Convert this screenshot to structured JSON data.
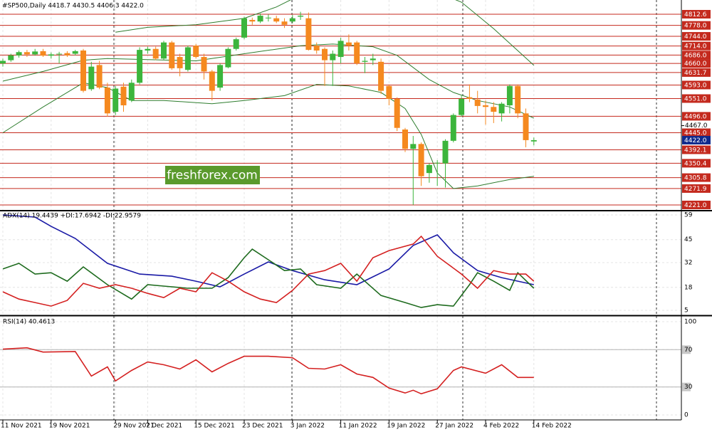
{
  "chart_data": [
    {
      "type": "candlestick",
      "title": "#SP500,Daily  4418.7 4430.5 4406.3 4422.0",
      "categories": [
        "11 Nov 2021",
        null,
        null,
        null,
        null,
        null,
        "19 Nov 2021",
        null,
        null,
        null,
        null,
        null,
        null,
        null,
        "29 Nov 2021",
        null,
        null,
        null,
        "7 Dec 2021",
        null,
        null,
        null,
        null,
        null,
        "15 Dec 2021",
        null,
        null,
        null,
        null,
        null,
        "23 Dec 2021",
        null,
        null,
        null,
        null,
        null,
        "3 Jan 2022",
        null,
        null,
        null,
        null,
        null,
        "11 Jan 2022",
        null,
        null,
        null,
        null,
        null,
        "19 Jan 2022",
        null,
        null,
        null,
        null,
        null,
        "27 Jan 2022",
        null,
        null,
        null,
        null,
        null,
        "4 Feb 2022",
        null,
        null,
        null,
        null,
        null,
        "14 Feb 2022"
      ],
      "open": [
        4660,
        4670,
        4685,
        4695,
        4688,
        4698,
        4684,
        4688,
        4692,
        4690,
        4700,
        4580,
        4655,
        4585,
        4510,
        4588,
        4545,
        4600,
        4700,
        4705,
        4675,
        4725,
        4680,
        4640,
        4715,
        4680,
        4635,
        4585,
        4648,
        4705,
        4740,
        4795,
        4790,
        4800,
        4800,
        4790,
        4790,
        4805,
        4800,
        4715,
        4705,
        4670,
        4680,
        4725,
        4725,
        4665,
        4670,
        4665,
        4590,
        4550,
        4455,
        4395,
        4410,
        4320,
        4350,
        4350,
        4420,
        4500,
        4555,
        4548,
        4530,
        4525,
        4505,
        4530,
        4590,
        4505,
        4418
      ],
      "high": [
        4675,
        4690,
        4700,
        4702,
        4705,
        4705,
        4694,
        4696,
        4698,
        4702,
        4705,
        4665,
        4668,
        4600,
        4590,
        4600,
        4610,
        4710,
        4712,
        4712,
        4730,
        4730,
        4690,
        4715,
        4720,
        4690,
        4640,
        4660,
        4710,
        4740,
        4805,
        4802,
        4815,
        4812,
        4808,
        4800,
        4810,
        4820,
        4818,
        4725,
        4710,
        4700,
        4740,
        4750,
        4730,
        4680,
        4690,
        4675,
        4595,
        4555,
        4460,
        4435,
        4415,
        4350,
        4360,
        4425,
        4505,
        4560,
        4595,
        4575,
        4545,
        4540,
        4540,
        4595,
        4595,
        4520,
        4430
      ],
      "low": [
        4650,
        4665,
        4678,
        4680,
        4684,
        4680,
        4675,
        4660,
        4680,
        4685,
        4570,
        4575,
        4580,
        4495,
        4500,
        4510,
        4540,
        4595,
        4690,
        4670,
        4670,
        4640,
        4620,
        4635,
        4675,
        4610,
        4545,
        4575,
        4645,
        4700,
        4735,
        4780,
        4785,
        4790,
        4785,
        4770,
        4785,
        4795,
        4700,
        4690,
        4590,
        4590,
        4660,
        4700,
        4655,
        4630,
        4655,
        4565,
        4530,
        4450,
        4385,
        4221,
        4280,
        4290,
        4280,
        4275,
        4415,
        4495,
        4540,
        4505,
        4470,
        4475,
        4480,
        4505,
        4490,
        4400,
        4406
      ],
      "close": [
        4668,
        4685,
        4695,
        4688,
        4697,
        4684,
        4688,
        4690,
        4685,
        4698,
        4575,
        4650,
        4585,
        4505,
        4582,
        4530,
        4600,
        4702,
        4705,
        4675,
        4725,
        4645,
        4645,
        4710,
        4680,
        4635,
        4575,
        4655,
        4705,
        4735,
        4800,
        4790,
        4808,
        4802,
        4790,
        4780,
        4800,
        4808,
        4702,
        4700,
        4670,
        4690,
        4730,
        4715,
        4660,
        4668,
        4675,
        4575,
        4550,
        4460,
        4395,
        4410,
        4310,
        4345,
        4352,
        4420,
        4500,
        4550,
        4550,
        4528,
        4525,
        4510,
        4535,
        4590,
        4505,
        4422,
        4422
      ],
      "up_color": "#3cb53c",
      "down_color": "#f5891f",
      "ylim": [
        4205.5,
        4856.7
      ],
      "yticks": [
        {
          "value": 4467.0,
          "label": "4467.0"
        }
      ],
      "levels": [
        4812.6,
        {
          "value": 4778.0,
          "label": "4778.0"
        },
        {
          "value": 4744.0,
          "label": "4744.0"
        },
        {
          "value": 4714.0,
          "label": "4714.0"
        },
        {
          "value": 4686.0,
          "label": "4686.0"
        },
        {
          "value": 4660.0,
          "label": "4660.0"
        },
        4631.7,
        {
          "value": 4593.0,
          "label": "4593.0"
        },
        {
          "value": 4551.0,
          "label": "4551.0"
        },
        {
          "value": 4496.0,
          "label": "4496.0"
        },
        {
          "value": 4445.0,
          "label": "4445.0"
        },
        4392.1,
        4350.4,
        4305.8,
        4271.9,
        {
          "value": 4221.0,
          "label": "4221.0"
        }
      ],
      "level_color": "#c42a1e",
      "last_price": {
        "value": 4422.0,
        "label": "4422.0"
      },
      "last_price_color": "#102a8c",
      "bands": [
        {
          "color": "#2e7d2e",
          "x": [
            14,
            18,
            24,
            30,
            34,
            36,
            45,
            52,
            57,
            61,
            66
          ],
          "values": [
            4757,
            4772,
            4780,
            4800,
            4835,
            4860,
            4900,
            4900,
            4850,
            4768,
            4654
          ]
        },
        {
          "color": "#2e7d2e",
          "x": [
            0,
            5,
            10,
            13,
            18,
            24,
            30,
            37,
            41,
            46,
            49,
            53,
            56,
            59,
            63,
            66
          ],
          "values": [
            4605,
            4635,
            4670,
            4675,
            4672,
            4668,
            4690,
            4715,
            4720,
            4712,
            4685,
            4610,
            4570,
            4545,
            4525,
            4490
          ]
        },
        {
          "color": "#2e7d2e",
          "x": [
            0,
            5,
            10,
            13,
            16,
            20,
            26,
            30,
            35,
            39,
            43,
            47,
            50,
            52,
            54,
            56,
            59,
            63,
            66
          ],
          "values": [
            4445,
            4525,
            4600,
            4585,
            4545,
            4545,
            4535,
            4545,
            4560,
            4595,
            4590,
            4570,
            4520,
            4440,
            4320,
            4272,
            4280,
            4300,
            4310
          ]
        }
      ],
      "watermark": "freshforex.com"
    },
    {
      "type": "line",
      "title": "ADX(14) 19.4439 +DI:17.6942 -DI:22.9579",
      "ylim": [
        2.6,
        60.6
      ],
      "yticks": [
        59,
        45,
        32,
        18,
        5
      ],
      "series": [
        {
          "color": "#1a1aa6",
          "x": [
            0,
            4,
            6,
            9,
            13,
            17,
            21,
            24,
            27,
            30,
            33,
            36,
            40,
            44,
            48,
            51,
            54,
            56,
            59,
            62,
            66
          ],
          "values": [
            59,
            57.8,
            52.5,
            45.7,
            31.6,
            25.5,
            24.3,
            21.5,
            18.3,
            25.5,
            32.4,
            27.5,
            22.3,
            19.5,
            28.4,
            41.7,
            47.7,
            37.6,
            27.5,
            23.5,
            19.5
          ]
        },
        {
          "color": "#1e6b1e",
          "x": [
            0,
            2,
            4,
            6,
            8,
            10,
            13,
            16,
            18,
            20,
            23,
            26,
            28,
            30,
            31,
            33,
            35,
            37,
            39,
            42,
            44,
            47,
            50,
            52,
            54,
            56,
            58,
            59,
            61,
            63,
            64,
            66
          ],
          "values": [
            28.4,
            31.6,
            25.5,
            26.3,
            21.5,
            29.6,
            19.5,
            11.4,
            19.5,
            18.7,
            17.5,
            17.5,
            23.5,
            34.8,
            39.6,
            33.6,
            27.5,
            28.4,
            19.5,
            17.5,
            25.5,
            13.4,
            9.4,
            6.6,
            8.2,
            7.4,
            19.5,
            26.3,
            21.5,
            16.3,
            26.3,
            17.5
          ]
        },
        {
          "color": "#d42020",
          "x": [
            0,
            2,
            4,
            6,
            8,
            10,
            12,
            14,
            16,
            18,
            20,
            22,
            24,
            26,
            28,
            30,
            32,
            34,
            36,
            38,
            40,
            42,
            44,
            46,
            48,
            51,
            52,
            54,
            57,
            59,
            61,
            63,
            65,
            66
          ],
          "values": [
            15.5,
            11.4,
            9.4,
            7.4,
            10.6,
            20.3,
            17.5,
            19.5,
            17.5,
            14.6,
            12.2,
            17.5,
            15.5,
            26.3,
            21.5,
            15.5,
            11.4,
            9.4,
            16.3,
            25.5,
            27.5,
            31.6,
            21.5,
            34.8,
            38.8,
            42.5,
            46.9,
            35.6,
            25.5,
            17.5,
            27.5,
            25.5,
            25.5,
            21.5
          ]
        }
      ]
    },
    {
      "type": "line",
      "title": "RSI(14) 40.4613",
      "ylim": [
        -5.3,
        105.3
      ],
      "yticks": [
        100,
        70,
        30,
        0
      ],
      "levels": [
        70,
        30
      ],
      "series": [
        {
          "color": "#d42020",
          "x": [
            0,
            3,
            5,
            9,
            11,
            13,
            14,
            16,
            18,
            20,
            22,
            24,
            26,
            28,
            30,
            33,
            36,
            38,
            40,
            42,
            44,
            46,
            48,
            50,
            51,
            52,
            54,
            56,
            57,
            60,
            62,
            64,
            66
          ],
          "values": [
            70.5,
            72,
            67.4,
            68,
            41.7,
            51.5,
            36.4,
            47.7,
            56.8,
            53.8,
            49.2,
            59.1,
            46.2,
            55.3,
            62.9,
            62.9,
            61.4,
            50,
            49.2,
            53.8,
            43.9,
            40.2,
            28.8,
            23.5,
            26.5,
            22.7,
            28,
            47.7,
            51.5,
            44.7,
            53.8,
            40.2,
            40.2
          ]
        }
      ]
    }
  ]
}
